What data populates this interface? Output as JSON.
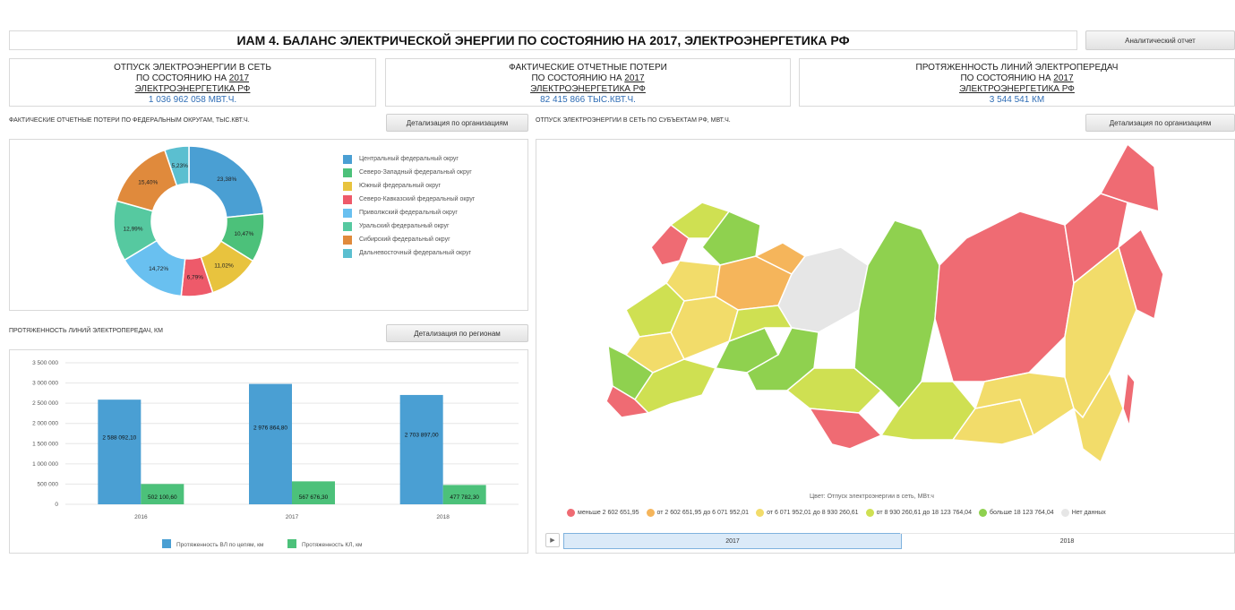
{
  "header": {
    "title": "ИАМ 4. БАЛАНС ЭЛЕКТРИЧЕСКОЙ ЭНЕРГИИ ПО СОСТОЯНИЮ НА 2017, ЭЛЕКТРОЭНЕРГЕТИКА РФ",
    "report_button": "Аналитический отчет"
  },
  "kpis": [
    {
      "line1": "ОТПУСК ЭЛЕКТРОЭНЕРГИИ В СЕТЬ",
      "line2_pre": "ПО СОСТОЯНИЮ НА ",
      "year": "2017",
      "line3": "ЭЛЕКТРОЭНЕРГЕТИКА РФ",
      "value": "1 036 962 058 МВТ.Ч."
    },
    {
      "line1": "ФАКТИЧЕСКИЕ ОТЧЕТНЫЕ ПОТЕРИ",
      "line2_pre": "ПО СОСТОЯНИЮ НА ",
      "year": "2017",
      "line3": "ЭЛЕКТРОЭНЕРГЕТИКА РФ",
      "value": "82 415 866 ТЫС.КВТ.Ч."
    },
    {
      "line1": "ПРОТЯЖЕННОСТЬ ЛИНИЙ ЭЛЕКТРОПЕРЕДАЧ",
      "line2_pre": "ПО СОСТОЯНИЮ НА ",
      "year": "2017",
      "line3": "ЭЛЕКТРОЭНЕРГЕТИКА РФ",
      "value": "3 544 541 КМ"
    }
  ],
  "losses_section": {
    "title": "ФАКТИЧЕСКИЕ ОТЧЕТНЫЕ ПОТЕРИ ПО ФЕДЕРАЛЬНЫМ ОКРУГАМ, ТЫС.КВТ.Ч.",
    "button": "Детализация по организациям"
  },
  "lines_section": {
    "title": "ПРОТЯЖЕННОСТЬ ЛИНИЙ ЭЛЕКТРОПЕРЕДАЧ, КМ",
    "button": "Детализация по регионам"
  },
  "map_section": {
    "title": "ОТПУСК ЭЛЕКТРОЭНЕРГИИ В СЕТЬ ПО СУБЪЕКТАМ РФ, МВТ.Ч.",
    "button": "Детализация по организациям",
    "color_caption": "Цвет: Отпуск электроэнергии в сеть, МВт.ч",
    "legend": [
      {
        "label": "меньше 2 602 651,95",
        "color": "#ef6b73"
      },
      {
        "label": "от 2 602 651,95 до 6 071 952,01",
        "color": "#f5b55b"
      },
      {
        "label": "от 6 071 952,01 до 8 930 260,61",
        "color": "#f2dc6a"
      },
      {
        "label": "от 8 930 260,61 до 18 123 764,04",
        "color": "#cfe052"
      },
      {
        "label": "больше 18 123 764,04",
        "color": "#8fd14f"
      },
      {
        "label": "Нет данных",
        "color": "#e6e6e6"
      }
    ],
    "timeline": {
      "year1": "2017",
      "year2": "2018",
      "play_icon": "play-icon"
    }
  },
  "chart_data": [
    {
      "type": "pie",
      "title": "ФАКТИЧЕСКИЕ ОТЧЕТНЫЕ ПОТЕРИ ПО ФЕДЕРАЛЬНЫМ ОКРУГАМ, ТЫС.КВТ.Ч.",
      "donut": true,
      "slices": [
        {
          "name": "Центральный федеральный округ",
          "value": 23.38,
          "label": "23,38%",
          "color": "#4a9fd3"
        },
        {
          "name": "Северо-Западный федеральный округ",
          "value": 10.47,
          "label": "10,47%",
          "color": "#4cc17a"
        },
        {
          "name": "Южный федеральный округ",
          "value": 11.02,
          "label": "11,02%",
          "color": "#e8c33e"
        },
        {
          "name": "Северо-Кавказский федеральный округ",
          "value": 6.79,
          "label": "6,79%",
          "color": "#ee5a6a"
        },
        {
          "name": "Приволжский федеральный округ",
          "value": 14.72,
          "label": "14,72%",
          "color": "#69c0f0"
        },
        {
          "name": "Уральский федеральный округ",
          "value": 12.99,
          "label": "12,99%",
          "color": "#56c9a0"
        },
        {
          "name": "Сибирский федеральный округ",
          "value": 15.4,
          "label": "15,40%",
          "color": "#e08a3c"
        },
        {
          "name": "Дальневосточный федеральный округ",
          "value": 5.23,
          "label": "5,23%",
          "color": "#5bbfd0"
        }
      ]
    },
    {
      "type": "bar",
      "title": "ПРОТЯЖЕННОСТЬ ЛИНИЙ ЭЛЕКТРОПЕРЕДАЧ, КМ",
      "categories": [
        "2016",
        "2017",
        "2018"
      ],
      "series": [
        {
          "name": "Протяженность ВЛ по цепям, км",
          "color": "#4a9fd3",
          "values": [
            2588092.1,
            2976864.8,
            2703897.0
          ],
          "labels": [
            "2 588 092,10",
            "2 976 864,80",
            "2 703 897,00"
          ]
        },
        {
          "name": "Протяженность КЛ, км",
          "color": "#4cc17a",
          "values": [
            502100.6,
            567676.3,
            477782.3
          ],
          "labels": [
            "502 100,60",
            "567 676,30",
            "477 782,30"
          ]
        }
      ],
      "ylim": [
        0,
        3500000
      ],
      "yticks": [
        "0",
        "500 000",
        "1 000 000",
        "1 500 000",
        "2 000 000",
        "2 500 000",
        "3 000 000",
        "3 500 000"
      ],
      "grid": true,
      "legend": "bottom"
    }
  ]
}
